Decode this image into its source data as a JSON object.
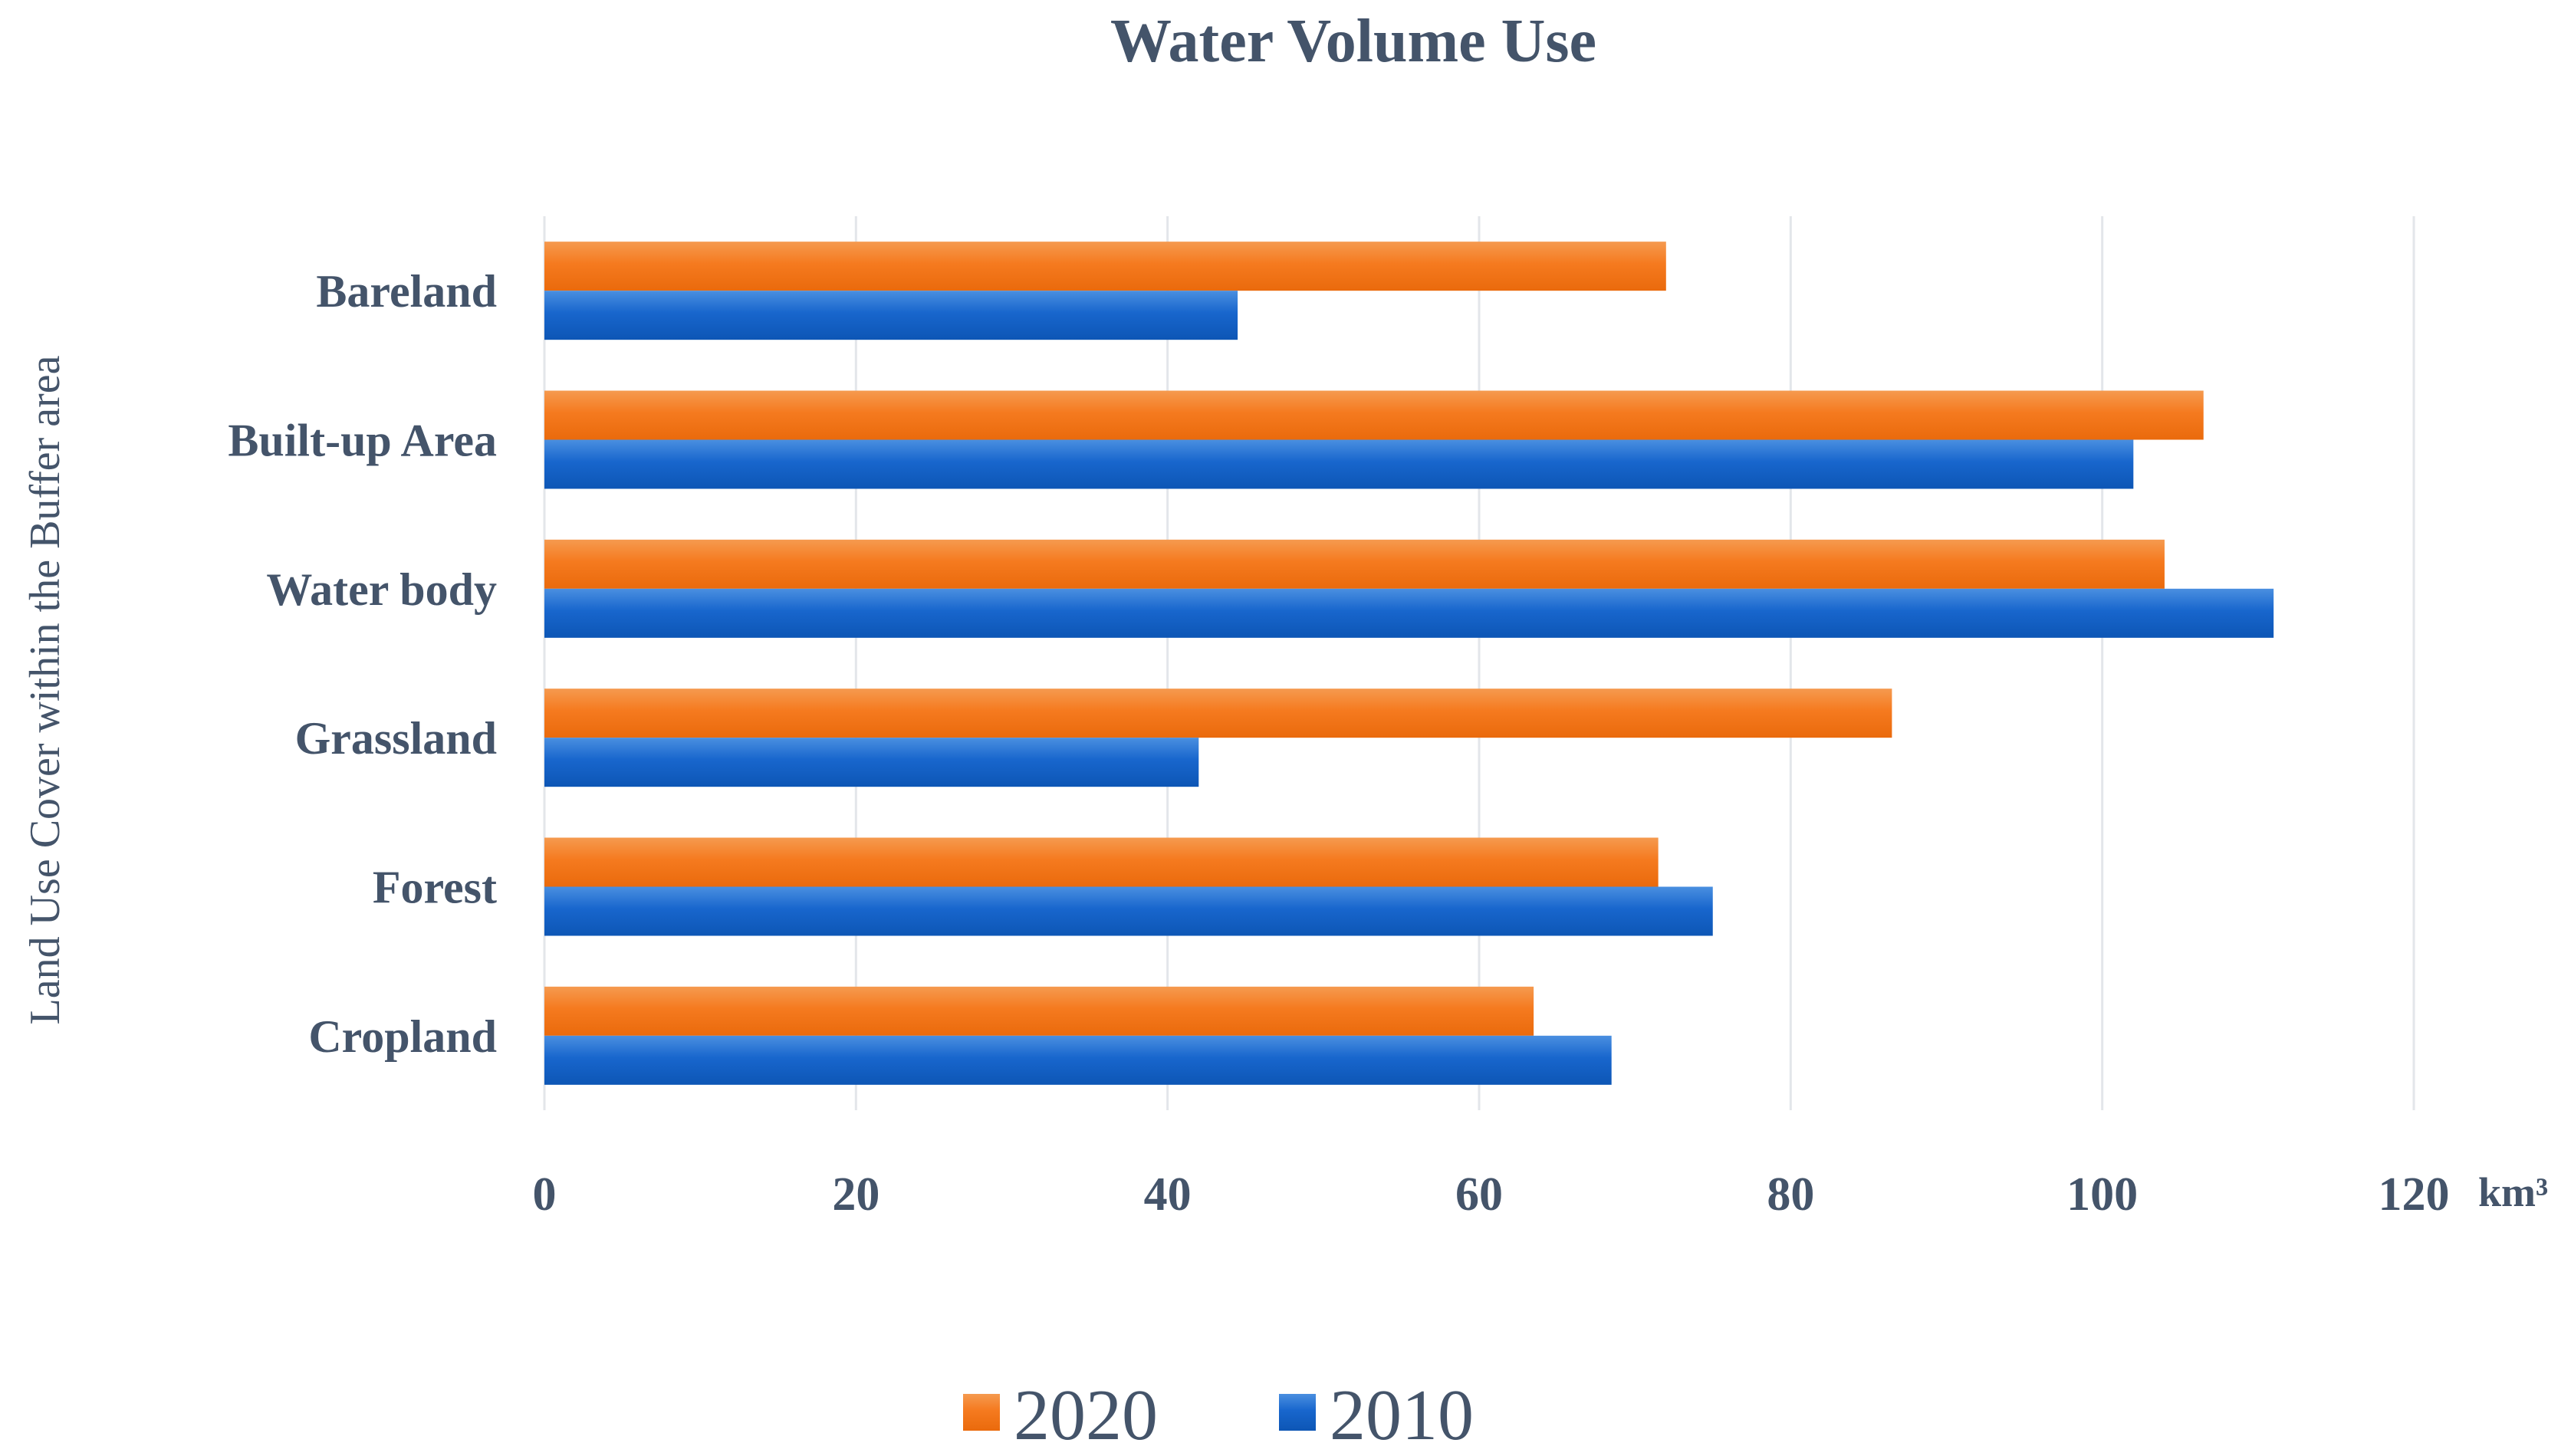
{
  "chart_data": {
    "type": "bar",
    "orientation": "horizontal",
    "title": "Water Volume Use",
    "xlabel": "",
    "ylabel": "Land Use Cover within the Buffer area",
    "unit": "km³",
    "categories": [
      "Bareland",
      "Built-up Area",
      "Water body",
      "Grassland",
      "Forest",
      "Cropland"
    ],
    "x_ticks": [
      "0",
      "20",
      "40",
      "60",
      "80",
      "100",
      "120"
    ],
    "xlim": [
      0,
      120
    ],
    "grid": true,
    "legend_position": "bottom",
    "series": [
      {
        "name": "2020",
        "color": "#f4761c",
        "values": [
          72,
          106.5,
          104,
          86.5,
          71.5,
          63.5
        ]
      },
      {
        "name": "2010",
        "color": "#1565c9",
        "values": [
          44.5,
          102,
          111,
          42,
          75,
          68.5
        ]
      }
    ]
  }
}
